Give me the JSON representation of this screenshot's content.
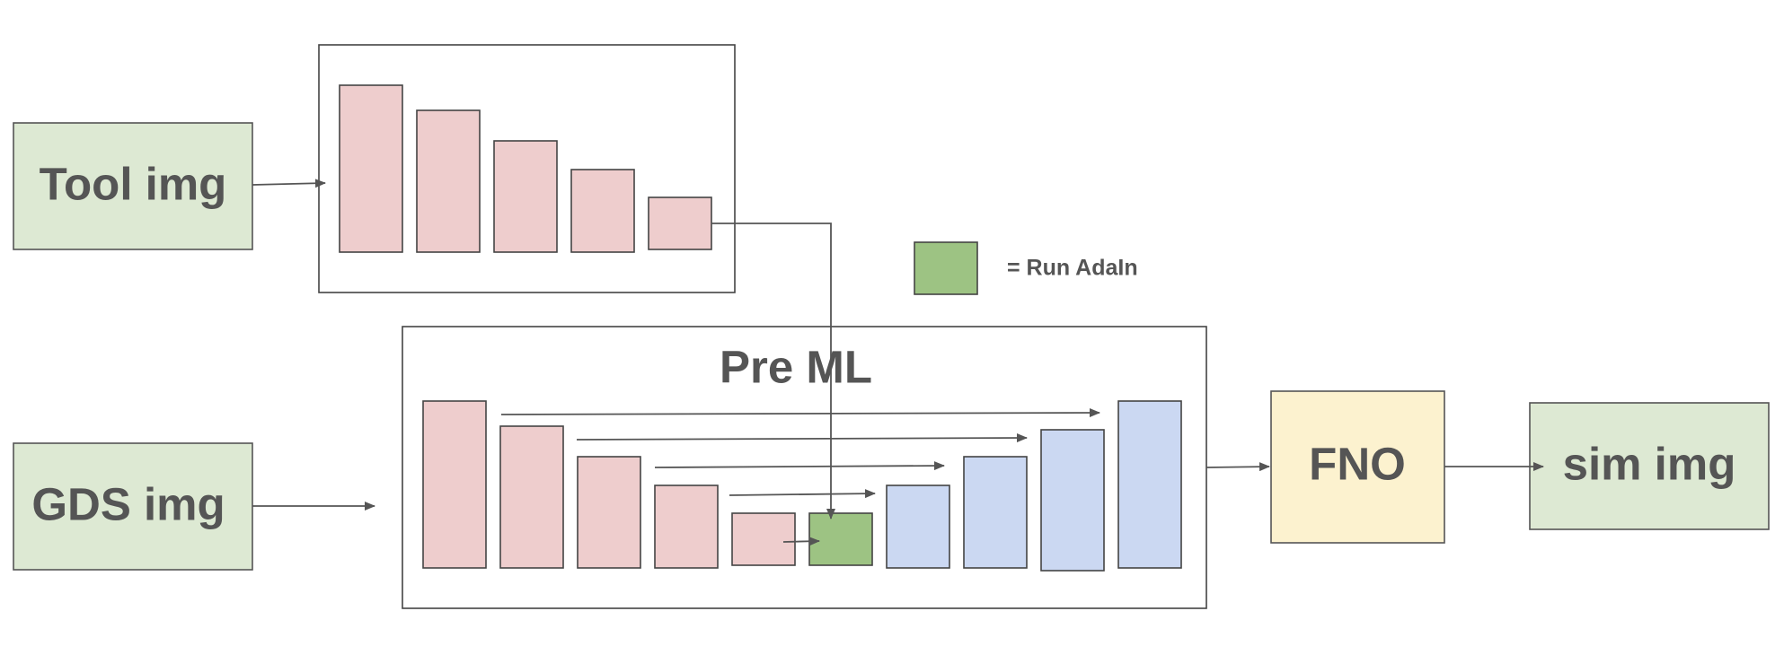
{
  "inputs": {
    "tool": "Tool img",
    "gds": "GDS img"
  },
  "pre_ml": {
    "title": "Pre ML"
  },
  "fno": {
    "label": "FNO"
  },
  "output": {
    "label": "sim img"
  },
  "legend": {
    "text": "= Run AdaIn",
    "swatch_color": "#9dc383"
  },
  "colors": {
    "encoder": "#eecdcd",
    "decoder": "#cbd8f2",
    "adain": "#9dc383",
    "io_box": "#dde9d3",
    "fno_box": "#fcf2cf",
    "text": "#555555"
  }
}
